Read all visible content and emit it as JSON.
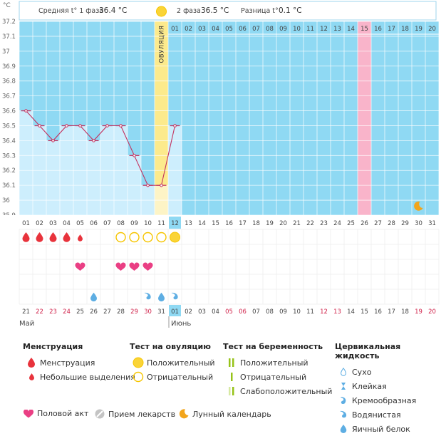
{
  "chart_data": {
    "type": "line",
    "unit_label": "°C",
    "header": {
      "phase1": "Средняя t° 1 фаза",
      "phase1_value": "36.4 °C",
      "phase2": "2 фаза",
      "phase2_value": "36.5 °C",
      "diff": "Разница t°",
      "diff_value": "0.1 °C"
    },
    "ovulation_label": "ОВУЛЯЦИЯ",
    "y_ticks": [
      "37.2",
      "37.1",
      "37",
      "36.9",
      "36.8",
      "36.7",
      "36.6",
      "36.5",
      "36.4",
      "36.3",
      "36.2",
      "36.1",
      "36",
      "35.9"
    ],
    "ylim": [
      35.9,
      37.2
    ],
    "cycle_days": [
      "01",
      "02",
      "03",
      "04",
      "05",
      "06",
      "07",
      "08",
      "09",
      "10",
      "11",
      "12",
      "13",
      "14",
      "15",
      "16",
      "17",
      "18",
      "19",
      "20",
      "21",
      "22",
      "23",
      "24",
      "25",
      "26",
      "27",
      "28",
      "29",
      "30",
      "31"
    ],
    "luteal_day_labels": [
      "01",
      "02",
      "03",
      "04",
      "05",
      "06",
      "07",
      "08",
      "09",
      "10",
      "11",
      "12",
      "13",
      "14",
      "15",
      "16",
      "17",
      "18",
      "19",
      "20"
    ],
    "temperatures": [
      36.6,
      36.5,
      36.4,
      36.5,
      36.5,
      36.4,
      36.5,
      36.5,
      36.3,
      36.1,
      36.1,
      36.5
    ],
    "ovulation_day": 11,
    "current_day": 12,
    "period_end_marker_day": 26,
    "moon_day": 30,
    "calendar_dates": [
      "21",
      "22",
      "23",
      "24",
      "25",
      "26",
      "27",
      "28",
      "29",
      "30",
      "31",
      "01",
      "02",
      "03",
      "04",
      "05",
      "06",
      "07",
      "08",
      "09",
      "10",
      "11",
      "12",
      "13",
      "14",
      "15",
      "16",
      "17",
      "18",
      "19",
      "20"
    ],
    "red_date_indices": [
      1,
      2,
      3,
      8,
      9,
      15,
      16,
      22,
      23,
      29,
      30
    ],
    "highlight_date_index": 11,
    "month_left": "Май",
    "month_right": "Июнь",
    "menstruation": [
      "big",
      "big",
      "big",
      "big",
      "small"
    ],
    "ovulation_tests": [
      "",
      "",
      "",
      "",
      "",
      "",
      "",
      "neg",
      "neg",
      "neg",
      "neg",
      "pos"
    ],
    "intercourse_days": [
      5,
      8,
      9,
      10
    ],
    "cervical": [
      {
        "day": 6,
        "kind": "egg"
      },
      {
        "day": 10,
        "kind": "watery"
      },
      {
        "day": 11,
        "kind": "egg"
      },
      {
        "day": 12,
        "kind": "watery"
      }
    ],
    "colors": {
      "fill": "#cdeefd",
      "phase2": "#8fd9f3",
      "ovulation": "#fcea8c",
      "marker": "#f9b4ca",
      "line": "#c3325f",
      "grid": "#ffffff",
      "menstruation": "#e8333c",
      "heart": "#ea3f84",
      "test": "#f6c500",
      "moon": "#f2a51c",
      "cervical": "#5eaee3"
    }
  },
  "legend": {
    "menstruation": {
      "title": "Менструация",
      "items": [
        "Менструация",
        "Небольшие выделения"
      ]
    },
    "ovulation_test": {
      "title": "Тест на овуляцию",
      "items": [
        "Положительный",
        "Отрицательный"
      ]
    },
    "pregnancy_test": {
      "title": "Тест на беременность",
      "items": [
        "Положительный",
        "Отрицательный",
        "Слабоположительный"
      ]
    },
    "cervical": {
      "title": "Цервикальная жидкость",
      "items": [
        "Сухо",
        "Клейкая",
        "Кремообразная",
        "Водянистая",
        "Яичный белок"
      ]
    },
    "bottom": [
      "Половой акт",
      "Прием лекарств",
      "Лунный календарь"
    ]
  }
}
